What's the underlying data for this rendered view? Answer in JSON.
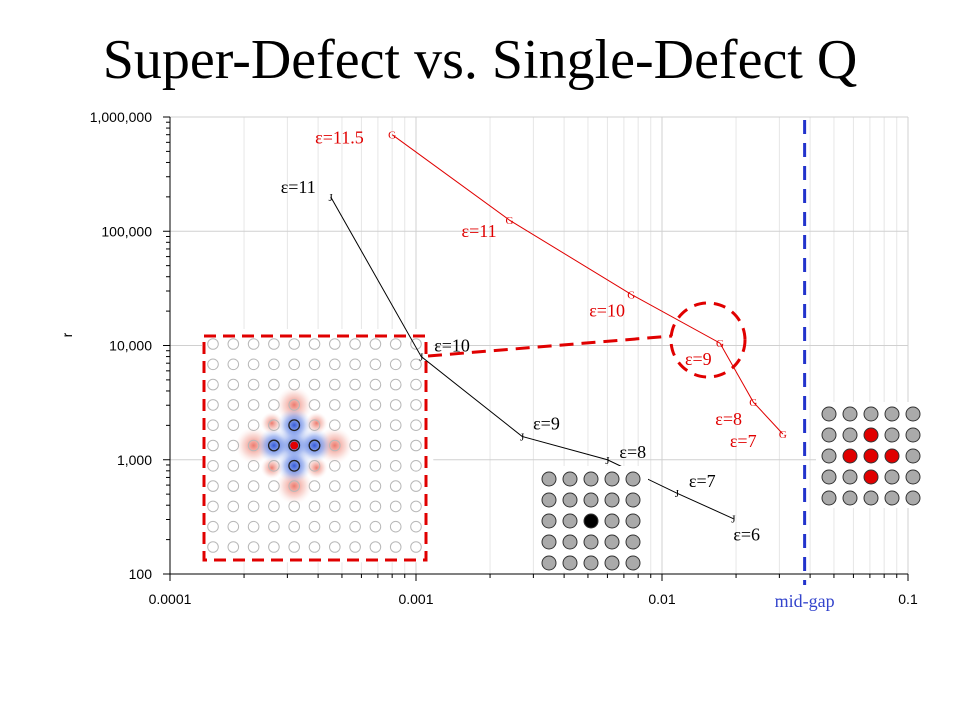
{
  "title": "Super-Defect vs. Single-Defect Q",
  "chart_data": {
    "type": "line",
    "x_scale": "log",
    "y_scale": "log",
    "xlim": [
      0.0001,
      0.1
    ],
    "ylim": [
      100,
      1000000
    ],
    "x_ticks": [
      {
        "v": 0.0001,
        "label": "0.0001"
      },
      {
        "v": 0.001,
        "label": "0.001"
      },
      {
        "v": 0.01,
        "label": "0.01"
      },
      {
        "v": 0.1,
        "label": "0.1"
      }
    ],
    "y_ticks": [
      {
        "v": 100,
        "label": "100"
      },
      {
        "v": 1000,
        "label": "1,000"
      },
      {
        "v": 10000,
        "label": "10,000"
      },
      {
        "v": 100000,
        "label": "100,000"
      },
      {
        "v": 1000000,
        "label": "1,000,000"
      }
    ],
    "ylabel": "r",
    "grid": true,
    "series": [
      {
        "marker": "J",
        "color": "#000000",
        "points": [
          {
            "x": 0.00045,
            "y": 200000,
            "label": "ε=11"
          },
          {
            "x": 0.00105,
            "y": 8000,
            "label": "ε=10"
          },
          {
            "x": 0.0027,
            "y": 1600,
            "label": "ε=9"
          },
          {
            "x": 0.006,
            "y": 1000,
            "label": "ε=8"
          },
          {
            "x": 0.0115,
            "y": 510,
            "label": "ε=7"
          },
          {
            "x": 0.0195,
            "y": 305,
            "label": "ε=6"
          }
        ]
      },
      {
        "marker": "G",
        "color": "#e00000",
        "points": [
          {
            "x": 0.0008,
            "y": 700000,
            "label": "ε=11.5"
          },
          {
            "x": 0.0024,
            "y": 125000,
            "label": "ε=11"
          },
          {
            "x": 0.0075,
            "y": 28000,
            "label": "ε=10"
          },
          {
            "x": 0.0172,
            "y": 10500,
            "label": "ε=9"
          },
          {
            "x": 0.0235,
            "y": 3200,
            "label": "ε=8"
          },
          {
            "x": 0.031,
            "y": 1680,
            "label": "ε=7"
          }
        ]
      }
    ],
    "annotations": {
      "mid_gap_label": "mid-gap",
      "mid_gap_x": 0.038
    }
  },
  "colors": {
    "red": "#e00000",
    "blue_dash": "#2233cc",
    "mid_gap_text": "#3344cc",
    "rod_gray": "#aaaaaa",
    "rod_red": "#e00000",
    "rod_black": "#000000"
  },
  "insets": {
    "single_defect": {
      "rows": 5,
      "cols": 5,
      "defects": [
        {
          "r": 2,
          "c": 2,
          "kind": "black"
        }
      ]
    },
    "super_defect": {
      "rows": 5,
      "cols": 5,
      "defects": [
        {
          "r": 1,
          "c": 2,
          "kind": "red"
        },
        {
          "r": 2,
          "c": 1,
          "kind": "red"
        },
        {
          "r": 2,
          "c": 2,
          "kind": "red"
        },
        {
          "r": 2,
          "c": 3,
          "kind": "red"
        },
        {
          "r": 3,
          "c": 2,
          "kind": "red"
        }
      ]
    },
    "field_pattern": {
      "rows": 11,
      "cols": 11,
      "center_r": 5,
      "center_c": 4
    }
  }
}
